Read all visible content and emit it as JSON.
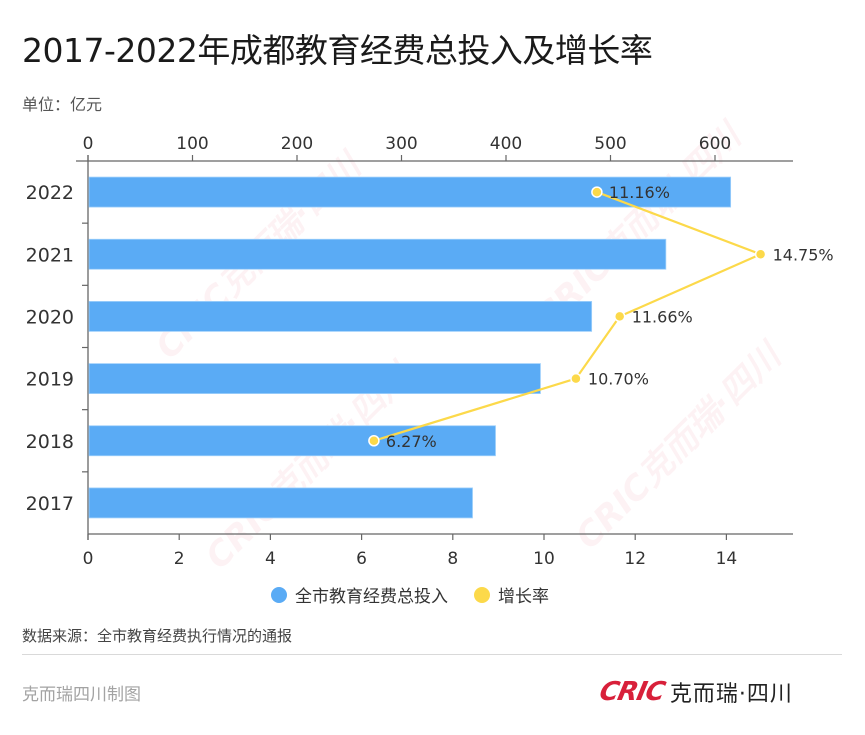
{
  "header": {
    "title": "2017-2022年成都教育经费总投入及增长率",
    "unit": "单位：亿元"
  },
  "footer": {
    "source": "数据来源：全市教育经费执行情况的通报",
    "credit": "克而瑞四川制图",
    "brand_logo": "CRIC",
    "brand_text": "克而瑞·四川"
  },
  "watermark": "CRIC克而瑞·四川",
  "colors": {
    "bar": "#5aabf5",
    "line": "#fcd94a",
    "axis": "#666666",
    "brand": "#d8203a"
  },
  "chart_data": {
    "type": "bar",
    "orientation": "horizontal",
    "title": "2017-2022年成都教育经费总投入及增长率",
    "unit": "亿元",
    "categories": [
      "2022",
      "2021",
      "2020",
      "2019",
      "2018",
      "2017"
    ],
    "series": [
      {
        "name": "全市教育经费总投入",
        "type": "bar",
        "axis": "top",
        "values": [
          614,
          552,
          481,
          432,
          389,
          367
        ]
      },
      {
        "name": "增长率",
        "type": "line",
        "axis": "bottom",
        "values": [
          11.16,
          14.75,
          11.66,
          10.7,
          6.27,
          null
        ],
        "labels": [
          "11.16%",
          "14.75%",
          "11.66%",
          "10.70%",
          "6.27%",
          ""
        ]
      }
    ],
    "top_axis": {
      "range": [
        0,
        675
      ],
      "ticks": [
        0,
        100,
        200,
        300,
        400,
        500,
        600
      ]
    },
    "bottom_axis": {
      "range": [
        0,
        15.4
      ],
      "ticks": [
        0,
        2,
        4,
        6,
        8,
        10,
        12,
        14
      ]
    },
    "legend": [
      "全市教育经费总投入",
      "增长率"
    ],
    "legend_position": "bottom",
    "grid": false
  }
}
